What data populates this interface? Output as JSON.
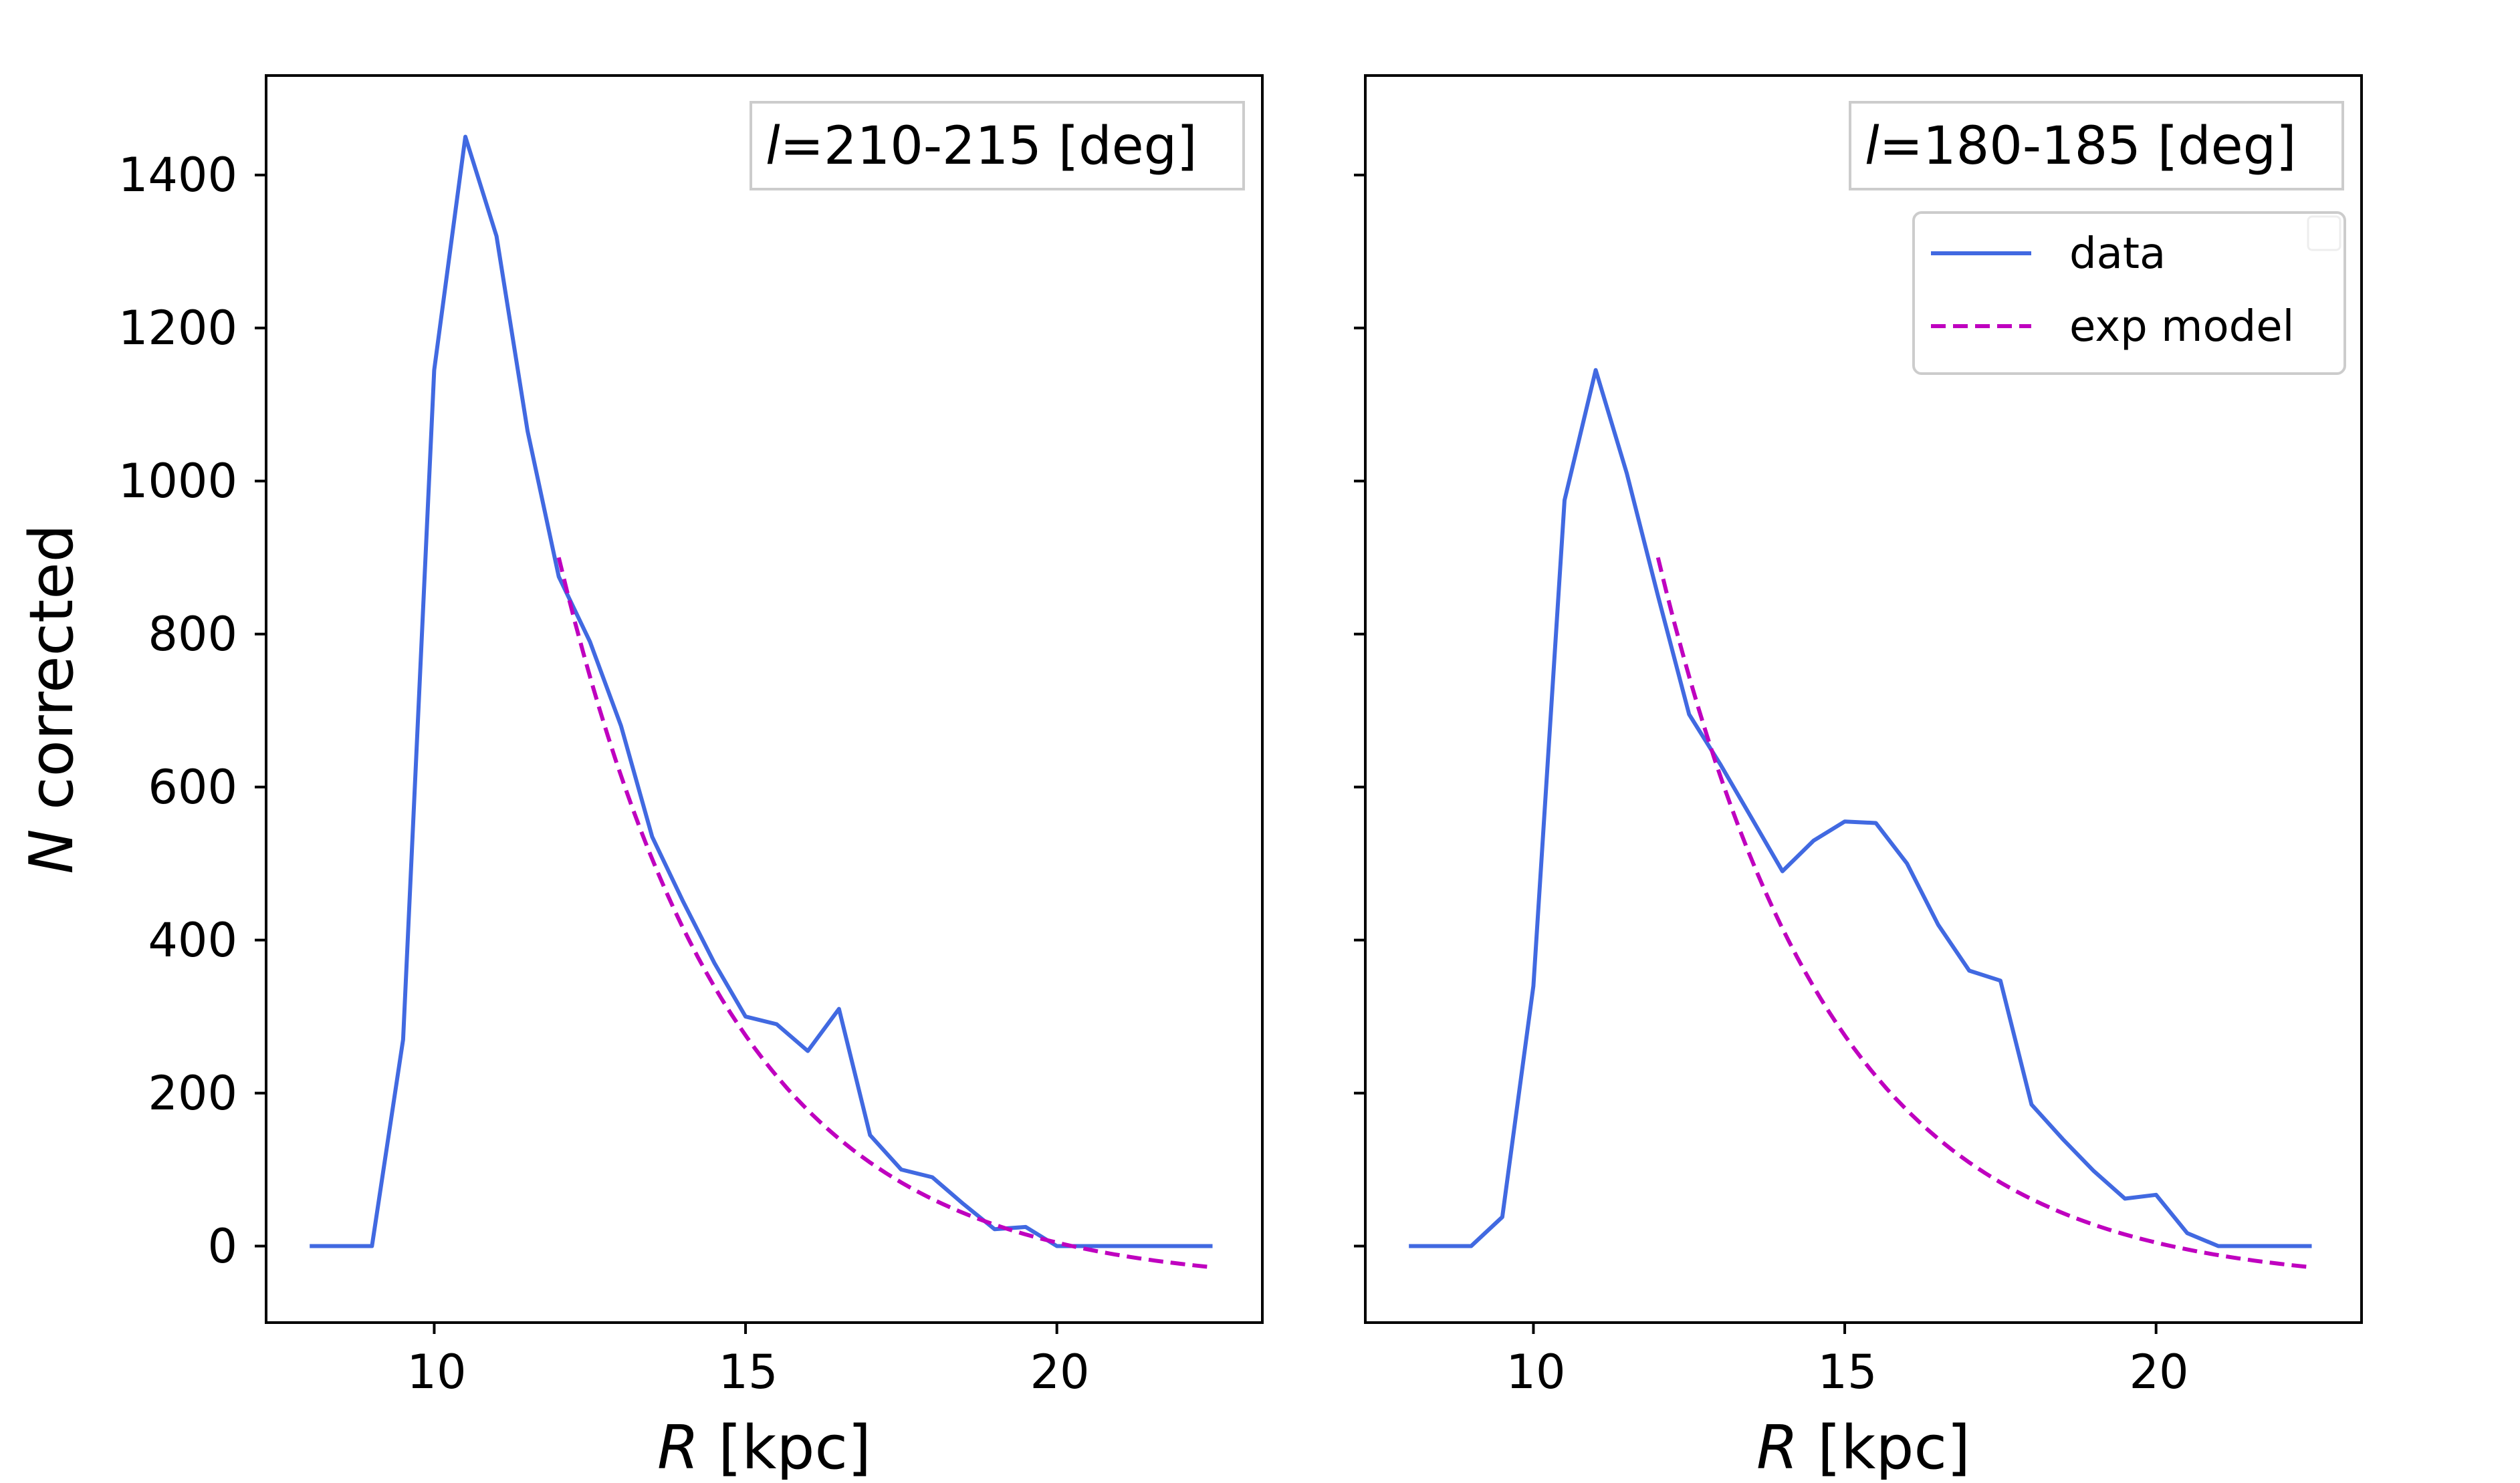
{
  "chart_data": [
    {
      "type": "line",
      "annotation": {
        "prefix": "l",
        "text": "=210-215 [deg]"
      },
      "xlabel": {
        "symbol": "R",
        "unit": " [kpc]"
      },
      "ylabel": {
        "symbol": "N",
        "text": " corrected"
      },
      "xlim": [
        7.3,
        23.3
      ],
      "ylim": [
        -100,
        1530
      ],
      "xticks": [
        10,
        15,
        20
      ],
      "xtick_labels": [
        "10",
        "15",
        "20"
      ],
      "yticks": [
        0,
        200,
        400,
        600,
        800,
        1000,
        1200,
        1400
      ],
      "ytick_labels": [
        "0",
        "200",
        "400",
        "600",
        "800",
        "1000",
        "1200",
        "1400"
      ],
      "show_ytick_labels": true,
      "show_legend": false,
      "series": [
        {
          "name": "data",
          "style": "solid",
          "color": "#4169e1",
          "x": [
            8,
            8.5,
            9,
            9.5,
            10,
            10.5,
            11,
            11.5,
            12,
            12.5,
            13,
            13.5,
            14,
            14.5,
            15,
            15.5,
            16,
            16.5,
            17,
            17.5,
            18,
            18.5,
            19,
            19.5,
            20,
            20.5,
            21,
            21.5,
            22,
            22.5
          ],
          "y": [
            0,
            0,
            0,
            270,
            1145,
            1450,
            1320,
            1065,
            875,
            790,
            680,
            535,
            450,
            370,
            300,
            290,
            255,
            310,
            145,
            100,
            90,
            55,
            22,
            25,
            0,
            0,
            0,
            0,
            0,
            0
          ]
        },
        {
          "name": "exp model",
          "style": "dashed",
          "color": "#bf00bf",
          "model": {
            "x0": 12,
            "x1": 22.5,
            "A": 950,
            "rs": 2.8,
            "C": -50
          }
        }
      ]
    },
    {
      "type": "line",
      "annotation": {
        "prefix": "l",
        "text": "=180-185 [deg]"
      },
      "xlabel": {
        "symbol": "R",
        "unit": " [kpc]"
      },
      "xlim": [
        7.3,
        23.3
      ],
      "ylim": [
        -100,
        1530
      ],
      "xticks": [
        10,
        15,
        20
      ],
      "xtick_labels": [
        "10",
        "15",
        "20"
      ],
      "yticks": [
        0,
        200,
        400,
        600,
        800,
        1000,
        1200,
        1400
      ],
      "show_ytick_labels": false,
      "show_legend": true,
      "legend": {
        "location": "upper right",
        "entries": [
          "data",
          "exp model"
        ]
      },
      "series": [
        {
          "name": "data",
          "style": "solid",
          "color": "#4169e1",
          "x": [
            8,
            8.5,
            9,
            9.5,
            10,
            10.5,
            11,
            11.5,
            12,
            12.5,
            13,
            13.5,
            14,
            14.5,
            15,
            15.5,
            16,
            16.5,
            17,
            17.5,
            18,
            18.5,
            19,
            19.5,
            20,
            20.5,
            21,
            21.5,
            22,
            22.5
          ],
          "y": [
            0,
            0,
            0,
            38,
            340,
            975,
            1145,
            1010,
            850,
            695,
            630,
            560,
            490,
            530,
            555,
            553,
            500,
            420,
            360,
            347,
            185,
            140,
            98,
            62,
            67,
            17,
            0,
            0,
            0,
            0
          ]
        },
        {
          "name": "exp model",
          "style": "dashed",
          "color": "#bf00bf",
          "model": {
            "x0": 12,
            "x1": 22.5,
            "A": 950,
            "rs": 2.8,
            "C": -50
          }
        }
      ]
    }
  ]
}
